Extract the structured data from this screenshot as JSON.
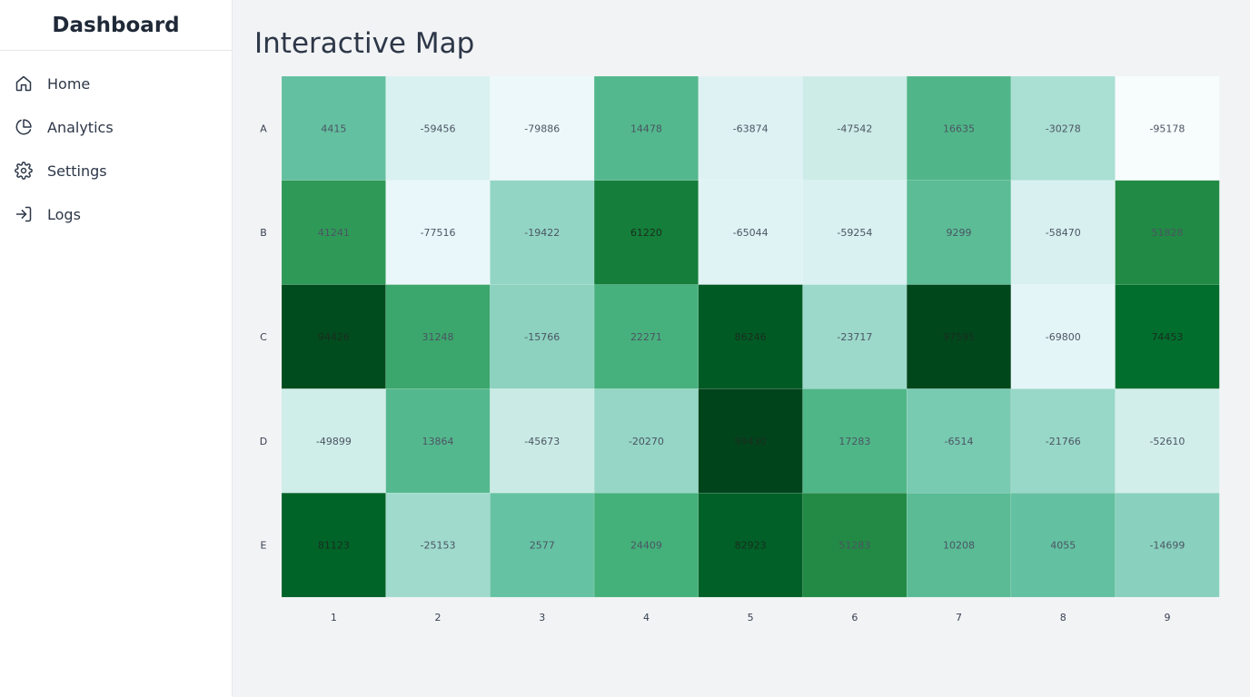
{
  "sidebar": {
    "title": "Dashboard",
    "items": [
      {
        "label": "Home",
        "icon": "home-icon"
      },
      {
        "label": "Analytics",
        "icon": "pie-chart-icon"
      },
      {
        "label": "Settings",
        "icon": "gear-icon"
      },
      {
        "label": "Logs",
        "icon": "log-in-icon"
      }
    ]
  },
  "main": {
    "title": "Interactive Map"
  },
  "chart_data": {
    "type": "heatmap",
    "rows": [
      "A",
      "B",
      "C",
      "D",
      "E"
    ],
    "columns": [
      "1",
      "2",
      "3",
      "4",
      "5",
      "6",
      "7",
      "8",
      "9"
    ],
    "values": [
      [
        4415,
        -59456,
        -79886,
        14478,
        -63874,
        -47542,
        16635,
        -30278,
        -95178
      ],
      [
        41241,
        -77516,
        -19422,
        61220,
        -65044,
        -59254,
        9299,
        -58470,
        51828
      ],
      [
        94426,
        31248,
        -15766,
        22271,
        86246,
        -23717,
        97595,
        -69800,
        74453
      ],
      [
        -49899,
        13864,
        -45673,
        -20270,
        99430,
        17283,
        -6514,
        -21766,
        -52610
      ],
      [
        81123,
        -25153,
        2577,
        24409,
        82923,
        51283,
        10208,
        4055,
        -14699
      ]
    ],
    "value_range": [
      -95178,
      99430
    ],
    "color_scale": [
      "#f7fcfd",
      "#e5f5f9",
      "#ccece6",
      "#99d8c9",
      "#66c2a4",
      "#41ae76",
      "#238b45",
      "#006d2c",
      "#00441b"
    ]
  }
}
